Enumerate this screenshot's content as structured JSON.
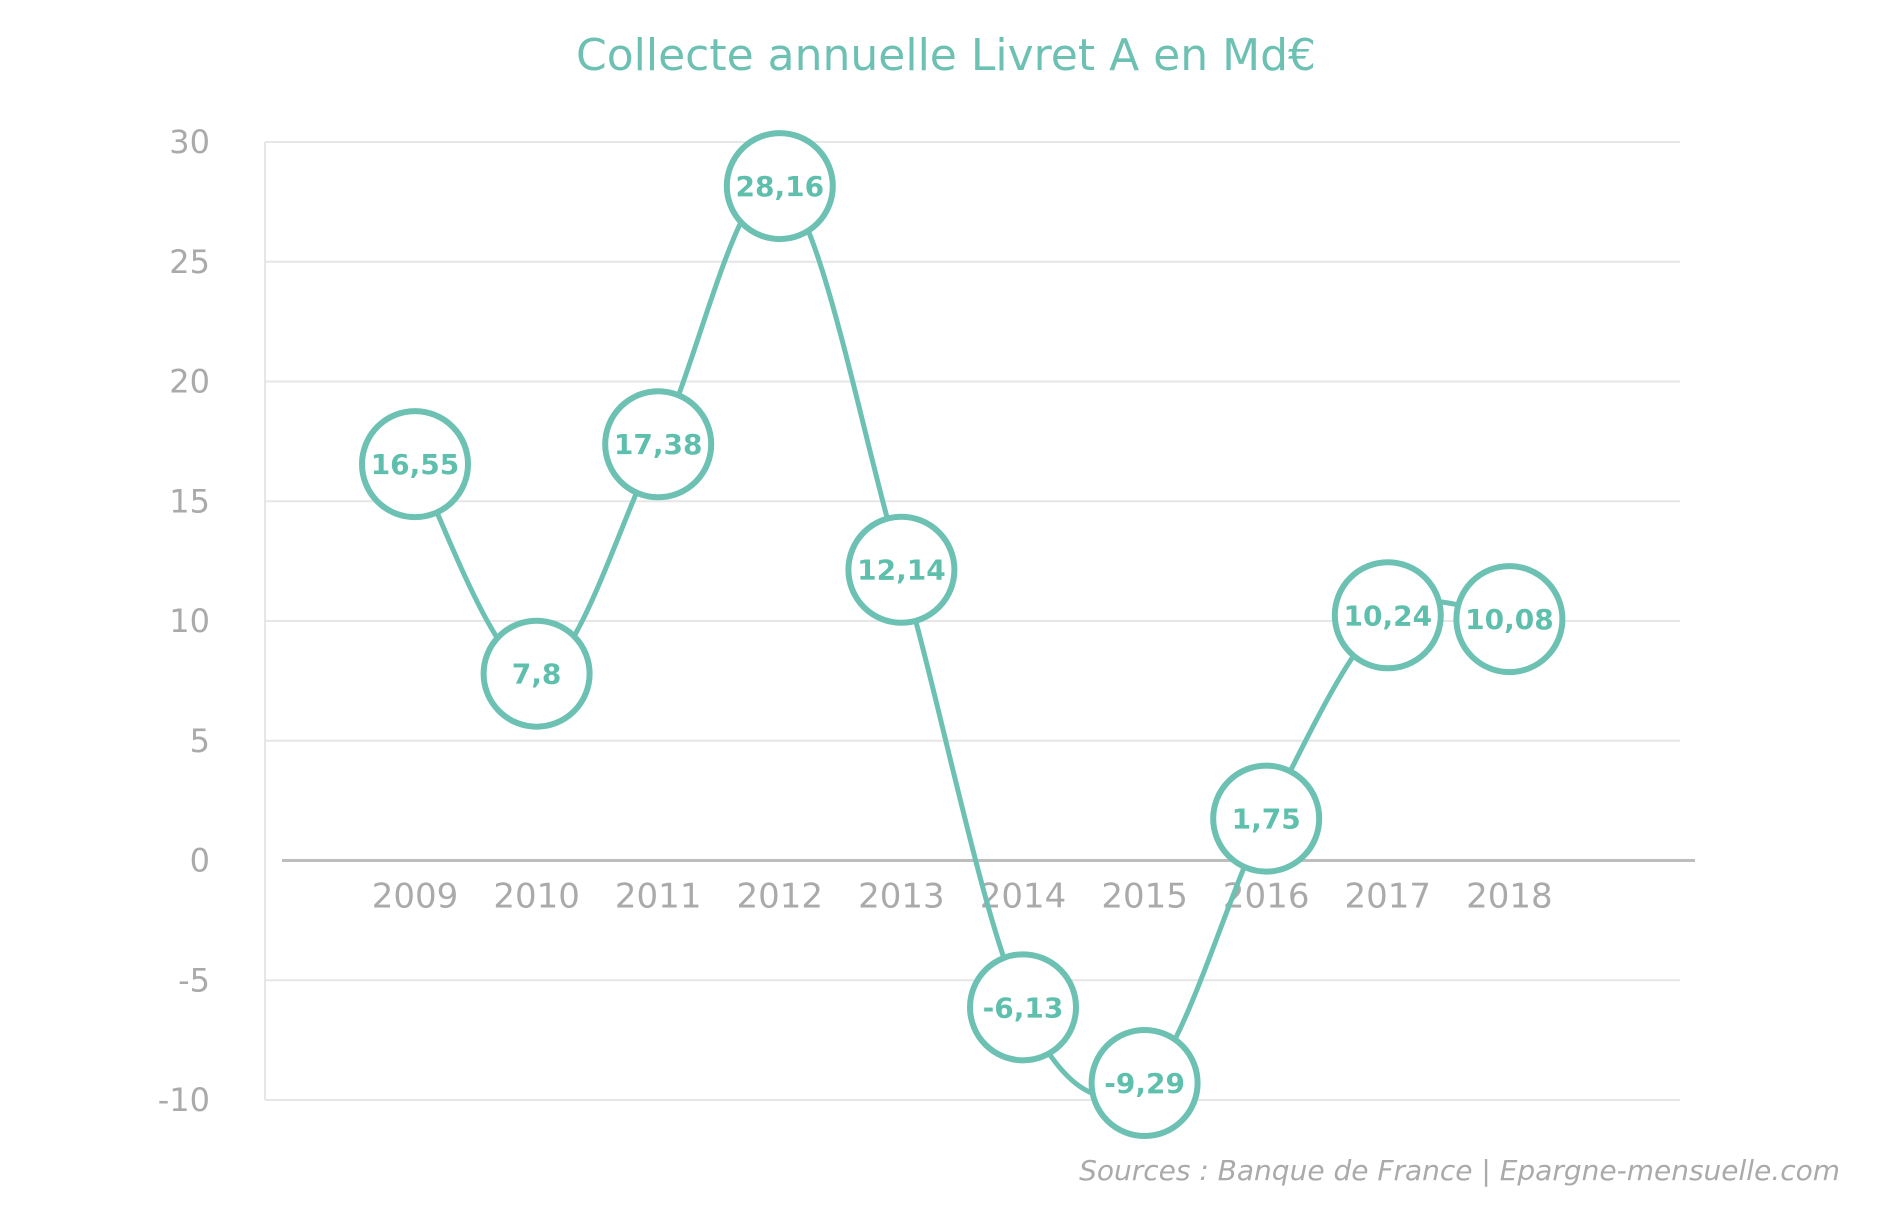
{
  "chart_data": {
    "type": "line",
    "title": "Collecte annuelle Livret A en Md€",
    "categories": [
      "2009",
      "2010",
      "2011",
      "2012",
      "2013",
      "2014",
      "2015",
      "2016",
      "2017",
      "2018"
    ],
    "values": [
      16.55,
      7.8,
      17.38,
      28.16,
      12.14,
      -6.13,
      -9.29,
      1.75,
      10.24,
      10.08
    ],
    "data_labels": [
      "16,55",
      "7,8",
      "17,38",
      "28,16",
      "12,14",
      "-6,13",
      "-9,29",
      "1,75",
      "10,24",
      "10,08"
    ],
    "yticks": [
      "30",
      "25",
      "20",
      "15",
      "10",
      "5",
      "0",
      "-5",
      "-10"
    ],
    "ylim": [
      -10,
      30
    ],
    "xlabel": "",
    "ylabel": "",
    "grid": true,
    "line_color": "#6cc1b3",
    "source": "Sources : Banque de France | Epargne-mensuelle.com"
  }
}
